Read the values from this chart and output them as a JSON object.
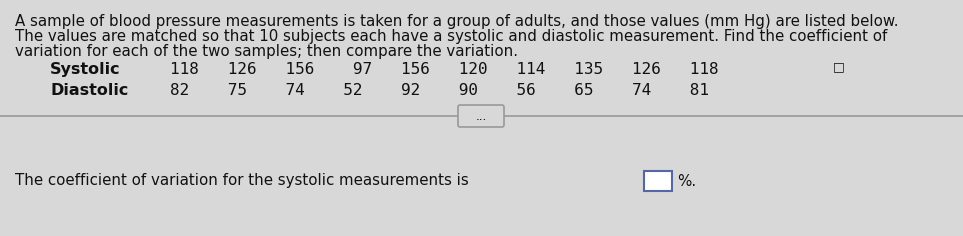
{
  "line1": "A sample of blood pressure measurements is taken for a group of adults, and those values (mm Hg) are listed below.",
  "line2": "The values are matched so that 10 subjects each have a systolic and diastolic measurement. Find the coefficient of",
  "line3": "variation for each of the two samples; then compare the variation.",
  "systolic_label": "Systolic",
  "systolic_nums": "118   126   156    97   156   120   114   135   126   118",
  "diastolic_label": "Diastolic",
  "diastolic_nums": "82    75    74    52    92    90    56    65    74    81",
  "bottom_text": "The coefficient of variation for the systolic measurements is",
  "percent_label": "%.",
  "bg_color": "#d8d8d8",
  "text_color": "#111111",
  "font_size_body": 10.8,
  "font_size_data": 11.5,
  "font_size_bottom": 10.8,
  "dots_label": "..."
}
